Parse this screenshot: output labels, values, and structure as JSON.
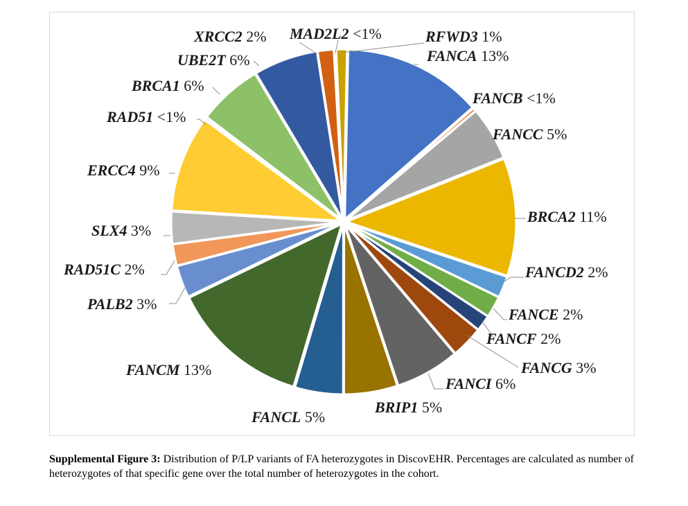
{
  "chart_data": {
    "type": "pie",
    "slices": [
      {
        "gene": "FANCA",
        "pct": "13%",
        "value": 13,
        "color": "#4472c4"
      },
      {
        "gene": "FANCB",
        "pct": "<1%",
        "value": 0.3,
        "color": "#ed7d31"
      },
      {
        "gene": "FANCC",
        "pct": "5%",
        "value": 5,
        "color": "#a5a5a5"
      },
      {
        "gene": "BRCA2",
        "pct": "11%",
        "value": 11,
        "color": "#ecb700"
      },
      {
        "gene": "FANCD2",
        "pct": "2%",
        "value": 2,
        "color": "#5b9bd5"
      },
      {
        "gene": "FANCE",
        "pct": "2%",
        "value": 2,
        "color": "#70ad47"
      },
      {
        "gene": "FANCF",
        "pct": "2%",
        "value": 1.5,
        "color": "#264478"
      },
      {
        "gene": "FANCG",
        "pct": "3%",
        "value": 3,
        "color": "#9e480e"
      },
      {
        "gene": "FANCI",
        "pct": "6%",
        "value": 6,
        "color": "#636363"
      },
      {
        "gene": "BRIP1",
        "pct": "5%",
        "value": 5,
        "color": "#997300"
      },
      {
        "gene": "FANCL",
        "pct": "5%",
        "value": 4.5,
        "color": "#255e91"
      },
      {
        "gene": "FANCM",
        "pct": "13%",
        "value": 13,
        "color": "#43682b"
      },
      {
        "gene": "PALB2",
        "pct": "3%",
        "value": 3,
        "color": "#698ed0"
      },
      {
        "gene": "RAD51C",
        "pct": "2%",
        "value": 2,
        "color": "#f1975a"
      },
      {
        "gene": "SLX4",
        "pct": "3%",
        "value": 3,
        "color": "#b7b7b7"
      },
      {
        "gene": "ERCC4",
        "pct": "9%",
        "value": 9,
        "color": "#ffcd33"
      },
      {
        "gene": "RAD51",
        "pct": "<1%",
        "value": 0.2,
        "color": "#4472c4"
      },
      {
        "gene": "BRCA1",
        "pct": "6%",
        "value": 6,
        "color": "#8cc168"
      },
      {
        "gene": "UBE2T",
        "pct": "6%",
        "value": 6,
        "color": "#335aa1"
      },
      {
        "gene": "XRCC2",
        "pct": "2%",
        "value": 1.5,
        "color": "#d26012"
      },
      {
        "gene": "MAD2L2",
        "pct": "<1%",
        "value": 0.2,
        "color": "#a5a5a5"
      },
      {
        "gene": "RFWD3",
        "pct": "1%",
        "value": 1,
        "color": "#c9a100"
      }
    ]
  },
  "caption": {
    "label": "Supplemental Figure 3:",
    "text": " Distribution of P/LP variants of FA heterozygotes in DiscovEHR. Percentages are calculated as number of heterozygotes of that specific gene over the total number of heterozygotes in the cohort."
  }
}
